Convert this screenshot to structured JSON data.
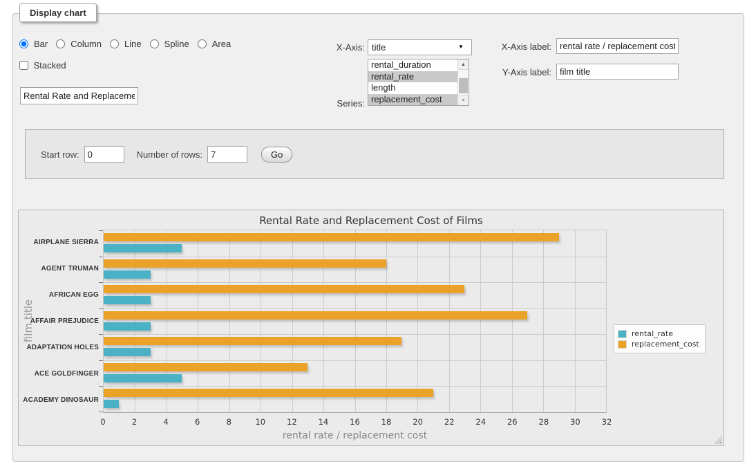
{
  "app": {
    "legend_title": "Display chart"
  },
  "icons": {
    "dropdown_arrow_icon": "▼",
    "scrollbar_up_icon": "▲",
    "scrollbar_down_icon": "▼"
  },
  "controls": {
    "chart_type": {
      "options": [
        "Bar",
        "Column",
        "Line",
        "Spline",
        "Area"
      ],
      "selected": "Bar"
    },
    "stacked": {
      "label": "Stacked",
      "checked": false
    },
    "chart_title_input": {
      "value": "Rental Rate and Replacement Cost of Films"
    },
    "x_axis": {
      "label": "X-Axis:",
      "selected": "title"
    },
    "series": {
      "label": "Series:",
      "options": [
        {
          "label": "rental_duration",
          "selected": false
        },
        {
          "label": "rental_rate",
          "selected": true
        },
        {
          "label": "length",
          "selected": false
        },
        {
          "label": "replacement_cost",
          "selected": true
        }
      ]
    },
    "x_axis_label": {
      "label": "X-Axis label:",
      "value": "rental rate / replacement cost"
    },
    "y_axis_label": {
      "label": "Y-Axis label:",
      "value": "film title"
    }
  },
  "row_controls": {
    "start_row": {
      "label": "Start row:",
      "value": "0"
    },
    "num_rows": {
      "label": "Number of rows:",
      "value": "7"
    },
    "go_label": "Go"
  },
  "chart_data": {
    "type": "bar",
    "orientation": "horizontal",
    "title": "Rental Rate and Replacement Cost of Films",
    "categories": [
      "AIRPLANE SIERRA",
      "AGENT TRUMAN",
      "AFRICAN EGG",
      "AFFAIR PREJUDICE",
      "ADAPTATION HOLES",
      "ACE GOLDFINGER",
      "ACADEMY DINOSAUR"
    ],
    "series": [
      {
        "name": "rental_rate",
        "color": "#4bb2c5",
        "values": [
          4.99,
          2.99,
          2.99,
          2.99,
          2.99,
          4.99,
          0.99
        ]
      },
      {
        "name": "replacement_cost",
        "color": "#eaa228",
        "values": [
          28.99,
          17.99,
          22.99,
          26.99,
          18.99,
          12.99,
          20.99
        ]
      }
    ],
    "draw_order_top_to_bottom": [
      "replacement_cost",
      "rental_rate"
    ],
    "xlabel": "rental rate / replacement cost",
    "ylabel": "film title",
    "xlim": [
      0,
      32
    ],
    "xticks": [
      0,
      2,
      4,
      6,
      8,
      10,
      12,
      14,
      16,
      18,
      20,
      22,
      24,
      26,
      28,
      30,
      32
    ],
    "grid": true,
    "legend_position": "right"
  }
}
